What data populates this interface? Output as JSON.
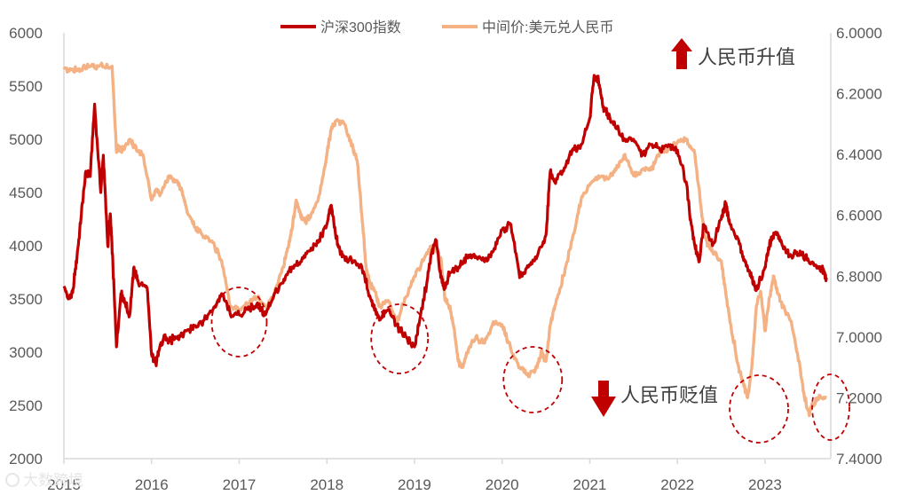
{
  "chart_data": {
    "type": "line",
    "title": "",
    "legend": {
      "placement": "top-center",
      "entries": [
        "沪深300指数",
        "中间价:美元兑人民币"
      ]
    },
    "x_ticks": [
      "2015",
      "2016",
      "2017",
      "2018",
      "2019",
      "2020",
      "2021",
      "2022",
      "2023"
    ],
    "y_left": {
      "ticks": [
        "2000",
        "2500",
        "3000",
        "3500",
        "4000",
        "4500",
        "5000",
        "5500",
        "6000"
      ],
      "ylim": [
        2000,
        6000
      ]
    },
    "y_right": {
      "ticks": [
        "6.0000",
        "6.2000",
        "6.4000",
        "6.6000",
        "6.8000",
        "7.0000",
        "7.2000",
        "7.4000"
      ],
      "ylim": [
        6.0,
        7.4
      ],
      "inverted": true
    },
    "series": [
      {
        "name": "沪深300指数",
        "axis": "left",
        "color": "#c00000",
        "x": [
          2015.0,
          2015.05,
          2015.1,
          2015.15,
          2015.2,
          2015.25,
          2015.3,
          2015.35,
          2015.42,
          2015.45,
          2015.5,
          2015.53,
          2015.56,
          2015.6,
          2015.65,
          2015.68,
          2015.75,
          2015.8,
          2015.85,
          2015.95,
          2016.0,
          2016.05,
          2016.08,
          2016.15,
          2016.2,
          2016.3,
          2016.4,
          2016.5,
          2016.6,
          2016.7,
          2016.8,
          2016.9,
          2017.0,
          2017.1,
          2017.2,
          2017.3,
          2017.4,
          2017.5,
          2017.6,
          2017.7,
          2017.8,
          2017.9,
          2018.0,
          2018.05,
          2018.1,
          2018.15,
          2018.2,
          2018.3,
          2018.4,
          2018.5,
          2018.55,
          2018.6,
          2018.7,
          2018.8,
          2018.9,
          2019.0,
          2019.05,
          2019.15,
          2019.2,
          2019.25,
          2019.3,
          2019.35,
          2019.4,
          2019.5,
          2019.6,
          2019.7,
          2019.8,
          2019.9,
          2020.0,
          2020.1,
          2020.2,
          2020.3,
          2020.4,
          2020.5,
          2020.55,
          2020.6,
          2020.7,
          2020.8,
          2020.9,
          2021.0,
          2021.05,
          2021.1,
          2021.15,
          2021.2,
          2021.3,
          2021.4,
          2021.5,
          2021.6,
          2021.7,
          2021.8,
          2021.9,
          2022.0,
          2022.1,
          2022.15,
          2022.2,
          2022.25,
          2022.3,
          2022.4,
          2022.5,
          2022.55,
          2022.6,
          2022.7,
          2022.75,
          2022.8,
          2022.85,
          2022.9,
          2023.0,
          2023.05,
          2023.1,
          2023.15,
          2023.2,
          2023.3,
          2023.4,
          2023.5,
          2023.6,
          2023.65,
          2023.7
        ],
        "values": [
          3620,
          3500,
          3560,
          3900,
          4300,
          4700,
          4650,
          5330,
          4500,
          4850,
          4000,
          4300,
          3800,
          3050,
          3550,
          3500,
          3350,
          3800,
          3650,
          3600,
          2980,
          2900,
          3000,
          3150,
          3100,
          3150,
          3200,
          3250,
          3300,
          3400,
          3550,
          3350,
          3350,
          3400,
          3450,
          3350,
          3550,
          3650,
          3800,
          3850,
          3950,
          4030,
          4200,
          4380,
          4100,
          3950,
          3900,
          3850,
          3800,
          3500,
          3400,
          3300,
          3400,
          3250,
          3150,
          3050,
          3250,
          3700,
          3950,
          4050,
          3700,
          3600,
          3750,
          3800,
          3900,
          3900,
          3850,
          3950,
          4150,
          4200,
          3700,
          3800,
          3900,
          4100,
          4700,
          4600,
          4700,
          4900,
          4950,
          5200,
          5600,
          5550,
          5300,
          5250,
          5100,
          5000,
          5000,
          4850,
          4950,
          4900,
          4950,
          4900,
          4600,
          4250,
          4000,
          3850,
          4200,
          4000,
          4250,
          4400,
          4200,
          4050,
          3900,
          3800,
          3700,
          3580,
          3800,
          4000,
          4120,
          4100,
          4000,
          3900,
          3950,
          3850,
          3800,
          3780,
          3700
        ]
      },
      {
        "name": "中间价:美元兑人民币",
        "axis": "right",
        "color": "#f4b183",
        "x": [
          2015.0,
          2015.1,
          2015.2,
          2015.3,
          2015.4,
          2015.55,
          2015.6,
          2015.62,
          2015.65,
          2015.75,
          2015.8,
          2015.9,
          2016.0,
          2016.05,
          2016.1,
          2016.2,
          2016.3,
          2016.35,
          2016.4,
          2016.5,
          2016.6,
          2016.7,
          2016.8,
          2016.9,
          2017.0,
          2017.1,
          2017.2,
          2017.3,
          2017.4,
          2017.5,
          2017.55,
          2017.6,
          2017.65,
          2017.7,
          2017.75,
          2017.8,
          2017.9,
          2018.0,
          2018.05,
          2018.1,
          2018.2,
          2018.3,
          2018.35,
          2018.4,
          2018.45,
          2018.5,
          2018.55,
          2018.6,
          2018.7,
          2018.8,
          2018.9,
          2019.0,
          2019.1,
          2019.2,
          2019.3,
          2019.35,
          2019.4,
          2019.45,
          2019.5,
          2019.55,
          2019.6,
          2019.7,
          2019.8,
          2019.9,
          2020.0,
          2020.05,
          2020.1,
          2020.2,
          2020.3,
          2020.4,
          2020.45,
          2020.5,
          2020.55,
          2020.6,
          2020.7,
          2020.8,
          2020.9,
          2021.0,
          2021.1,
          2021.2,
          2021.3,
          2021.4,
          2021.5,
          2021.6,
          2021.7,
          2021.8,
          2021.9,
          2022.0,
          2022.1,
          2022.2,
          2022.3,
          2022.35,
          2022.4,
          2022.5,
          2022.55,
          2022.6,
          2022.7,
          2022.75,
          2022.8,
          2022.85,
          2022.9,
          2022.95,
          2023.0,
          2023.05,
          2023.1,
          2023.15,
          2023.2,
          2023.3,
          2023.4,
          2023.45,
          2023.5,
          2023.55,
          2023.6,
          2023.7
        ],
        "values": [
          6.12,
          6.12,
          6.12,
          6.11,
          6.11,
          6.11,
          6.39,
          6.37,
          6.39,
          6.35,
          6.37,
          6.4,
          6.55,
          6.52,
          6.53,
          6.47,
          6.49,
          6.52,
          6.58,
          6.64,
          6.67,
          6.69,
          6.75,
          6.9,
          6.91,
          6.89,
          6.87,
          6.9,
          6.86,
          6.77,
          6.71,
          6.65,
          6.55,
          6.6,
          6.62,
          6.61,
          6.55,
          6.4,
          6.32,
          6.29,
          6.3,
          6.38,
          6.43,
          6.6,
          6.78,
          6.83,
          6.85,
          6.9,
          6.88,
          6.95,
          6.87,
          6.8,
          6.75,
          6.7,
          6.74,
          6.88,
          6.9,
          6.97,
          7.08,
          7.1,
          7.05,
          7.0,
          7.02,
          6.95,
          6.96,
          7.0,
          7.04,
          7.1,
          7.13,
          7.1,
          7.05,
          7.08,
          6.96,
          6.9,
          6.8,
          6.68,
          6.55,
          6.5,
          6.47,
          6.48,
          6.45,
          6.4,
          6.47,
          6.45,
          6.45,
          6.39,
          6.38,
          6.36,
          6.35,
          6.4,
          6.65,
          6.7,
          6.72,
          6.75,
          6.85,
          6.95,
          7.1,
          7.15,
          7.2,
          7.1,
          6.9,
          6.85,
          6.98,
          6.87,
          6.8,
          6.86,
          6.9,
          6.95,
          7.1,
          7.2,
          7.25,
          7.22,
          7.2,
          7.2
        ]
      }
    ]
  },
  "annotations": {
    "appreciation_label": "人民币升值",
    "depreciation_label": "人民币贬值",
    "appreciation_arrow_color": "#c00000",
    "depreciation_arrow_color": "#c00000",
    "circle_color": "#c00000",
    "circles_at_year": [
      2017.0,
      2018.83,
      2020.35,
      2022.93,
      2023.75
    ]
  },
  "watermark": "大数跨境"
}
